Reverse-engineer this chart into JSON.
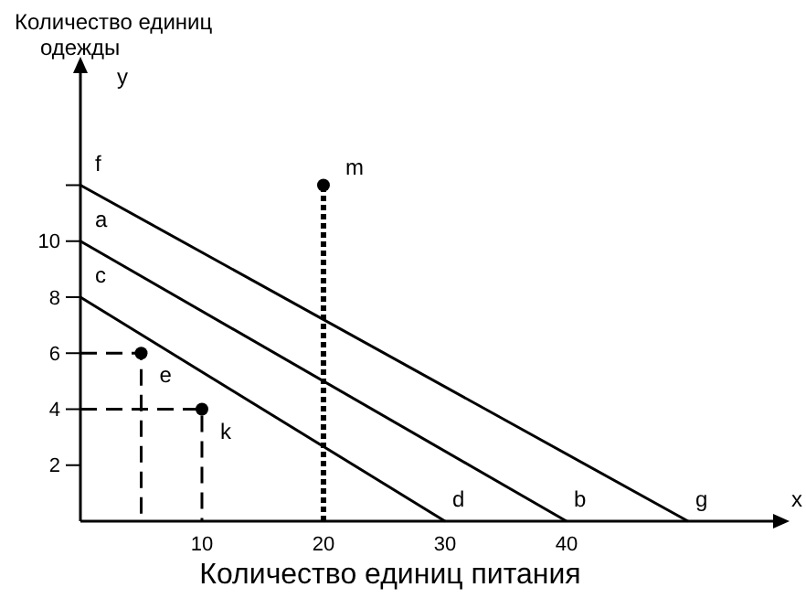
{
  "chart_data": {
    "type": "line",
    "xlabel": "Количество единиц питания",
    "ylabel": "Количество единиц одежды",
    "xlim": [
      0,
      57
    ],
    "ylim": [
      0,
      16
    ],
    "xticks": [
      10,
      20,
      30,
      40
    ],
    "yticks": [
      2,
      4,
      6,
      8,
      10,
      {
        "value": 12,
        "label": null
      }
    ],
    "grid": false,
    "ref_lines": [
      {
        "axis": "x",
        "value": 20,
        "line_style": "dotted",
        "color": "#000000"
      }
    ],
    "marker": "none",
    "series": [
      {
        "color": "#000000",
        "x": [
          0,
          50
        ],
        "values": [
          12,
          0
        ]
      },
      {
        "color": "#000000",
        "x": [
          0,
          40
        ],
        "values": [
          10,
          0
        ]
      },
      {
        "color": "#000000",
        "x": [
          0,
          30
        ],
        "values": [
          8,
          0
        ]
      },
      {
        "color": "#000000",
        "x": [
          0,
          5,
          5
        ],
        "values": [
          6,
          6,
          0
        ],
        "line_style": "dashed"
      },
      {
        "color": "#000000",
        "x": [
          0,
          10,
          10
        ],
        "values": [
          4,
          4,
          0
        ],
        "line_style": "dashed"
      },
      {
        "type": "scatter",
        "marker": "circle",
        "color": "#000000",
        "x": [
          20,
          5,
          10
        ],
        "values": [
          12,
          6,
          4
        ]
      }
    ],
    "annotations": [
      "x",
      "y",
      {
        "text": "f",
        "x": 0,
        "y": 12
      },
      {
        "text": "a",
        "x": 0,
        "y": 10
      },
      {
        "text": "c",
        "x": 0,
        "y": 8
      },
      {
        "text": "d",
        "x": 30,
        "y": 0
      },
      {
        "text": "b",
        "x": 40,
        "y": 0
      },
      {
        "text": "g",
        "x": 50,
        "y": 0
      },
      {
        "text": "m",
        "x": 20,
        "y": 12
      },
      {
        "text": "e",
        "x": 5,
        "y": 6
      },
      {
        "text": "k",
        "x": 10,
        "y": 4
      }
    ]
  }
}
